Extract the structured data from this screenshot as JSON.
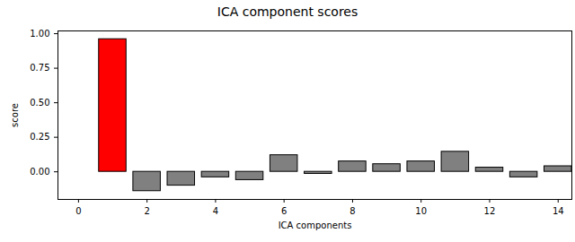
{
  "chart_data": {
    "type": "bar",
    "title": "ICA component scores",
    "x_label": "ICA components",
    "y_label": "score",
    "x": [
      0,
      1,
      2,
      3,
      4,
      5,
      6,
      7,
      8,
      9,
      10,
      11,
      12,
      13,
      14
    ],
    "values": [
      0.0,
      0.96,
      -0.14,
      -0.1,
      -0.04,
      -0.06,
      0.12,
      -0.015,
      0.075,
      0.055,
      0.075,
      0.145,
      0.03,
      -0.04,
      0.04
    ],
    "colors": [
      "#808080",
      "#ff0000",
      "#808080",
      "#808080",
      "#808080",
      "#808080",
      "#808080",
      "#808080",
      "#808080",
      "#808080",
      "#808080",
      "#808080",
      "#808080",
      "#808080",
      "#808080"
    ],
    "xlim": [
      -0.6,
      14.4
    ],
    "xticks": [
      0,
      2,
      4,
      6,
      8,
      10,
      12,
      14
    ],
    "ylim": [
      -0.2,
      1.02
    ],
    "yticks": [
      {
        "value": 0,
        "label": "0.00"
      },
      {
        "value": 0.25,
        "label": "0.25"
      },
      {
        "value": 0.5,
        "label": "0.50"
      },
      {
        "value": 0.75,
        "label": "0.75"
      },
      {
        "value": 1,
        "label": "1.00"
      }
    ],
    "grid": false
  }
}
